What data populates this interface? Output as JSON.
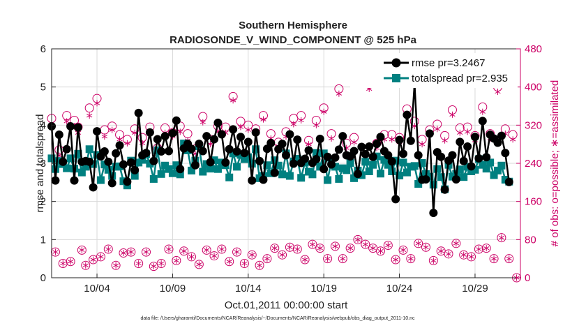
{
  "chart_data": {
    "type": "line",
    "title_line1": "Southern Hemisphere",
    "title_line2": "RADIOSONDE_V_WIND_COMPONENT @ 525 hPa",
    "xlabel": "Oct.01,2011 00:00:00 start",
    "ylabel_left": "rmse and totalspread",
    "ylabel_right": "# of obs: o=possible; ∗=assimilated",
    "footer": "data file: /Users/gharamti/Documents/NCAR/Reanalysis/~/Documents/NCAR/Reanalysis/webpub/obs_diag_output_2011-10.nc",
    "xlim_days": [
      1,
      32
    ],
    "ylim_left": [
      0,
      6
    ],
    "ylim_right": [
      0,
      480
    ],
    "x_ticks": [
      {
        "day": 4,
        "label": "10/04"
      },
      {
        "day": 9,
        "label": "10/09"
      },
      {
        "day": 14,
        "label": "10/14"
      },
      {
        "day": 19,
        "label": "10/19"
      },
      {
        "day": 24,
        "label": "10/24"
      },
      {
        "day": 29,
        "label": "10/29"
      }
    ],
    "y_left_ticks": [
      "0",
      "1",
      "2",
      "3",
      "4",
      "5",
      "6"
    ],
    "y_right_ticks": [
      "0",
      "80",
      "160",
      "240",
      "320",
      "400",
      "480"
    ],
    "colors": {
      "rmse": "#000000",
      "spread": "#008080",
      "obs": "#cc0066",
      "grid": "#d9d9d9",
      "axis": "#222222"
    },
    "series": [
      {
        "name": "rmse",
        "legend": "rmse pr=3.2467",
        "values": [
          3.97,
          2.55,
          3.75,
          3.04,
          3.37,
          3.97,
          2.55,
          3.94,
          3.04,
          3.06,
          3.04,
          2.37,
          3.84,
          3.18,
          3.31,
          3.04,
          2.48,
          3.26,
          3.47,
          2.97,
          2.52,
          3.02,
          2.82,
          4.32,
          3.21,
          3.27,
          3.81,
          3.06,
          3.63,
          3.31,
          3.71,
          3.32,
          3.79,
          4.12,
          2.85,
          3.39,
          3.51,
          3.38,
          2.95,
          3.51,
          3.32,
          3.71,
          3.03,
          3.63,
          4.06,
          3.76,
          3.02,
          3.37,
          3.89,
          3.31,
          3.69,
          3.27,
          3.56,
          2.55,
          3.81,
          3.06,
          2.57,
          3.38,
          3.53,
          2.75,
          3.37,
          3.51,
          3.21,
          3.76,
          2.99,
          3.62,
          3.01,
          3.12,
          3.34,
          3.01,
          3.11,
          3.64,
          2.85,
          3.17,
          2.97,
          3.15,
          3.36,
          3.71,
          3.21,
          3.18,
          3.32,
          2.72,
          3.43,
          3.24,
          3.44,
          3.17,
          3.51,
          3.69,
          3.32,
          3.21,
          3.05,
          2.06,
          3.61,
          3.25,
          4.27,
          3.59,
          5.08,
          3.21,
          2.57,
          2.58,
          3.78,
          1.7,
          3.29,
          3.17,
          2.31,
          3.07,
          3.21,
          2.58,
          3.56,
          3.06,
          3.44,
          2.92,
          3.69,
          3.13,
          4.11,
          3.16,
          3.75,
          3.65,
          3.54,
          3.72,
          3.27,
          2.51
        ],
        "marker": "circle"
      },
      {
        "name": "totalspread",
        "legend": "totalspread pr=2.935",
        "values": [
          3.13,
          2.85,
          3.06,
          2.98,
          2.87,
          3.13,
          2.86,
          3.25,
          2.76,
          2.91,
          3.37,
          2.98,
          3.22,
          2.56,
          2.97,
          2.83,
          2.67,
          2.91,
          2.92,
          2.53,
          2.42,
          3.07,
          2.67,
          3.02,
          3.09,
          3.24,
          2.99,
          2.59,
          3.34,
          2.72,
          2.94,
          2.85,
          2.74,
          2.95,
          2.71,
          3.52,
          3.34,
          2.81,
          3.07,
          3.45,
          2.78,
          2.98,
          2.86,
          3.08,
          2.85,
          3.02,
          2.95,
          2.63,
          3.26,
          2.91,
          3.22,
          3.11,
          3.16,
          2.99,
          3.37,
          2.61,
          2.67,
          2.95,
          2.74,
          3.08,
          2.94,
          2.71,
          3.26,
          2.67,
          3.05,
          3.12,
          2.62,
          3.02,
          2.78,
          2.71,
          3.27,
          2.91,
          3.26,
          2.56,
          3.06,
          2.91,
          2.59,
          2.87,
          2.82,
          3.01,
          2.61,
          2.81,
          2.69,
          3.04,
          2.79,
          2.96,
          3.18,
          2.73,
          3.09,
          2.96,
          2.79,
          3.07,
          2.68,
          3.02,
          2.76,
          2.91,
          2.93,
          2.46,
          3.01,
          2.72,
          2.65,
          2.44,
          2.85,
          2.64,
          2.32,
          2.96,
          2.65,
          2.72,
          2.84,
          2.64,
          2.91,
          2.79,
          2.83,
          3.11,
          2.96,
          2.86,
          3.02,
          2.69,
          2.81,
          2.94,
          2.57,
          2.52
        ],
        "marker": "square"
      },
      {
        "name": "obs_possible",
        "values": [
          334,
          54,
          268,
          30,
          340,
          34,
          330,
          316,
          58,
          26,
          356,
          38,
          376,
          44,
          310,
          60,
          318,
          26,
          300,
          52,
          290,
          54,
          312,
          30,
          294,
          54,
          316,
          24,
          272,
          30,
          314,
          60,
          304,
          36,
          318,
          56,
          302,
          44,
          270,
          28,
          338,
          58,
          290,
          46,
          318,
          60,
          316,
          34,
          380,
          54,
          328,
          30,
          320,
          48,
          312,
          26,
          340,
          40,
          302,
          62,
          284,
          48,
          306,
          64,
          334,
          60,
          340,
          38,
          288,
          70,
          330,
          62,
          356,
          40,
          302,
          66,
          396,
          40,
          282,
          62,
          294,
          80,
          446,
          70,
          406,
          62,
          282,
          56,
          300,
          68,
          300,
          38,
          294,
          58,
          354,
          40,
          328,
          72,
          290,
          64,
          310,
          36,
          322,
          56,
          298,
          50,
          352,
          72,
          314,
          48,
          316,
          44,
          298,
          60,
          358,
          62,
          302,
          40,
          400,
          84,
          312,
          40,
          300,
          0
        ],
        "marker": "circle-open"
      },
      {
        "name": "obs_assimilated",
        "values": [
          324,
          54,
          256,
          30,
          328,
          34,
          318,
          304,
          58,
          26,
          340,
          38,
          366,
          44,
          296,
          60,
          310,
          26,
          290,
          52,
          282,
          54,
          304,
          30,
          282,
          54,
          306,
          24,
          262,
          30,
          304,
          60,
          296,
          36,
          306,
          56,
          288,
          44,
          260,
          28,
          326,
          58,
          280,
          46,
          306,
          60,
          304,
          34,
          372,
          54,
          316,
          30,
          310,
          48,
          302,
          26,
          332,
          40,
          292,
          62,
          276,
          48,
          296,
          64,
          322,
          60,
          330,
          38,
          280,
          70,
          320,
          62,
          348,
          40,
          292,
          66,
          386,
          40,
          272,
          62,
          284,
          80,
          438,
          70,
          396,
          62,
          272,
          56,
          290,
          68,
          290,
          38,
          284,
          58,
          344,
          40,
          318,
          72,
          280,
          64,
          300,
          36,
          312,
          56,
          288,
          50,
          342,
          72,
          304,
          48,
          306,
          44,
          288,
          60,
          348,
          62,
          292,
          40,
          390,
          84,
          302,
          40,
          290,
          0
        ],
        "marker": "asterisk"
      }
    ]
  }
}
